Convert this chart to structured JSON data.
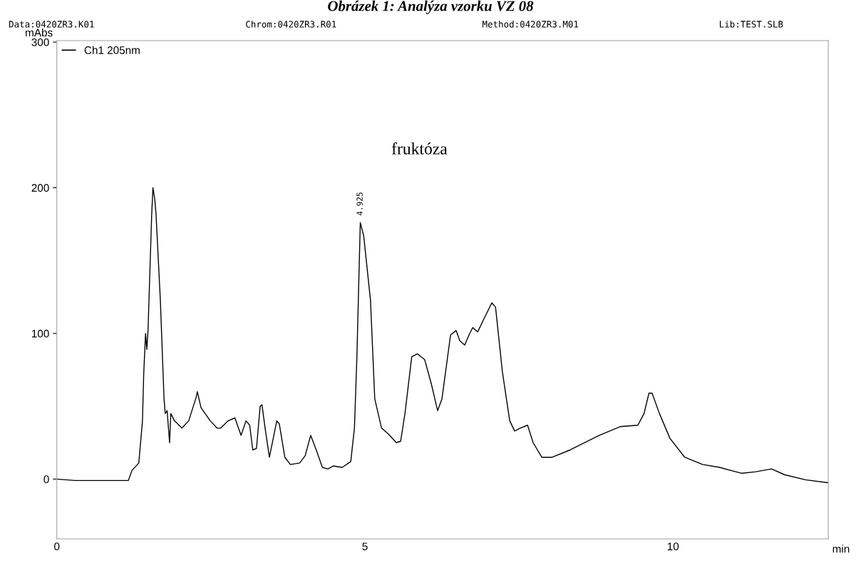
{
  "chart_data": {
    "type": "line",
    "title": "Obrázek 1: Analýza vzorku VZ 08",
    "annotations": [
      "Data:0420ZR3.K01",
      "Chrom:0420ZR3.R01",
      "Method:0420ZR3.M01",
      "Lib:TEST.SLB",
      "fruktóza",
      {
        "text": "4.925",
        "x": 4.925,
        "y": 176
      }
    ],
    "xlabel": "min",
    "ylabel": "mAbs",
    "xlim": [
      0,
      12.52
    ],
    "ylim": [
      -41,
      301
    ],
    "xticks": [
      0,
      5,
      10
    ],
    "yticks": [
      0,
      100,
      200,
      300
    ],
    "grid": false,
    "legend": "top left",
    "marker": "none",
    "line_style": "solid",
    "series": [
      {
        "name": "Ch1 205nm",
        "color": "#000000",
        "x": [
          0,
          0.3,
          1.16,
          1.22,
          1.33,
          1.39,
          1.41,
          1.44,
          1.46,
          1.48,
          1.54,
          1.56,
          1.59,
          1.61,
          1.68,
          1.74,
          1.76,
          1.79,
          1.83,
          1.85,
          1.91,
          2.03,
          2.14,
          2.26,
          2.28,
          2.34,
          2.49,
          2.6,
          2.66,
          2.78,
          2.89,
          2.99,
          3.07,
          3.13,
          3.18,
          3.24,
          3.3,
          3.33,
          3.38,
          3.45,
          3.57,
          3.61,
          3.7,
          3.79,
          3.94,
          4.03,
          4.12,
          4.21,
          4.31,
          4.4,
          4.49,
          4.63,
          4.77,
          4.83,
          4.87,
          4.925,
          4.98,
          5.09,
          5.16,
          5.27,
          5.38,
          5.51,
          5.58,
          5.65,
          5.76,
          5.85,
          5.97,
          6.08,
          6.18,
          6.25,
          6.39,
          6.48,
          6.54,
          6.62,
          6.69,
          6.75,
          6.83,
          6.92,
          7.06,
          7.12,
          7.23,
          7.35,
          7.43,
          7.52,
          7.64,
          7.73,
          7.87,
          8.04,
          8.33,
          8.8,
          9.14,
          9.43,
          9.53,
          9.61,
          9.66,
          9.78,
          9.95,
          10.19,
          10.48,
          10.76,
          11.11,
          11.34,
          11.6,
          11.81,
          12.15,
          12.52
        ],
        "values": [
          0,
          -1,
          -1,
          6,
          11,
          40,
          72,
          100,
          89,
          102,
          182,
          200,
          192,
          182,
          123,
          55,
          45,
          47,
          25,
          45,
          40,
          35,
          40,
          56,
          60,
          49,
          40,
          35,
          35,
          40,
          42,
          30,
          40,
          37,
          20,
          21,
          50,
          51,
          35,
          15,
          40,
          38,
          15,
          10,
          11,
          16,
          30,
          20,
          8,
          7,
          9,
          8,
          12,
          35,
          84,
          176,
          167,
          123,
          55,
          35,
          31,
          25,
          26,
          45,
          84,
          86,
          82,
          65,
          47,
          55,
          99,
          102,
          95,
          92,
          99,
          104,
          101,
          109,
          121,
          118,
          74,
          40,
          33,
          35,
          37,
          25,
          15,
          15,
          20,
          30,
          36,
          37,
          45,
          59,
          59,
          45,
          28,
          15,
          10,
          8,
          4,
          5,
          7,
          3,
          -0.5,
          -2.5
        ]
      }
    ]
  }
}
